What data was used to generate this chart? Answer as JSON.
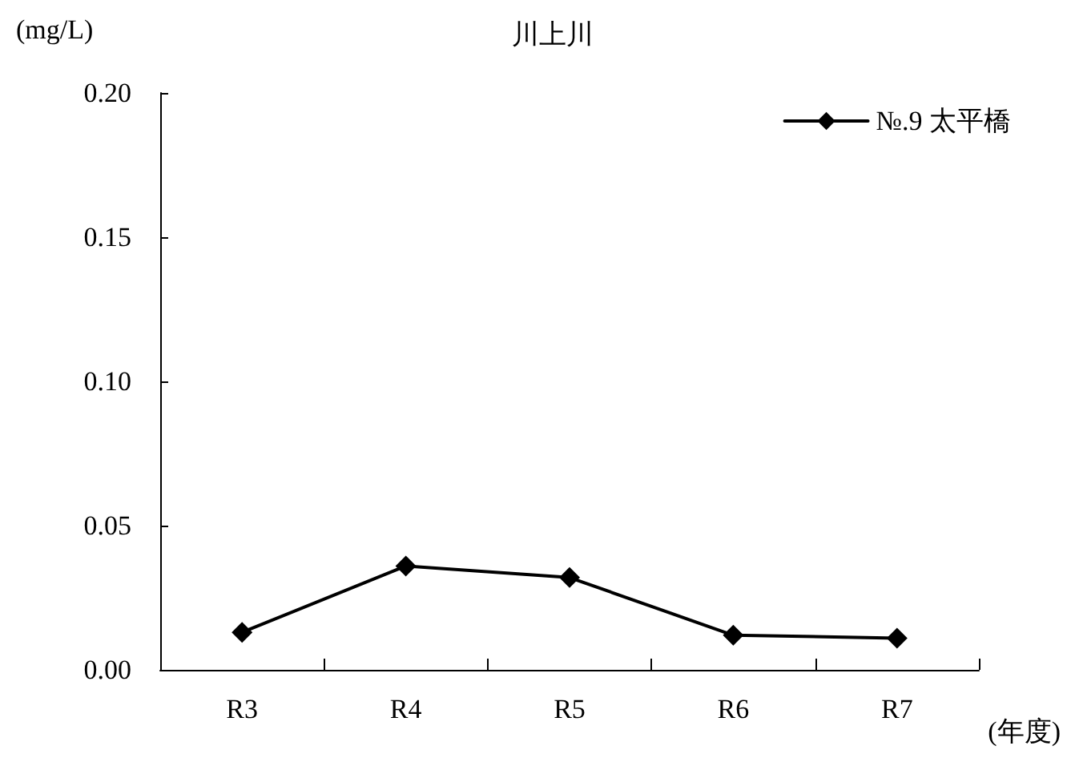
{
  "chart_data": {
    "type": "line",
    "title": "川上川",
    "xlabel": "(年度)",
    "ylabel": "(mg/L)",
    "categories": [
      "R3",
      "R4",
      "R5",
      "R6",
      "R7"
    ],
    "series": [
      {
        "name": "№.9 太平橋",
        "color": "#000000",
        "values": [
          0.013,
          0.036,
          0.032,
          0.012,
          0.011
        ]
      }
    ],
    "ylim": [
      0,
      0.2
    ],
    "yticks": [
      {
        "value": 0,
        "label": "0.00"
      },
      {
        "value": 0.05,
        "label": "0.05"
      },
      {
        "value": 0.1,
        "label": "0.10"
      },
      {
        "value": 0.15,
        "label": "0.15"
      },
      {
        "value": 0.2,
        "label": "0.20"
      }
    ],
    "grid": false,
    "legend": "top right",
    "marker": "diamond",
    "line_style": "solid"
  }
}
